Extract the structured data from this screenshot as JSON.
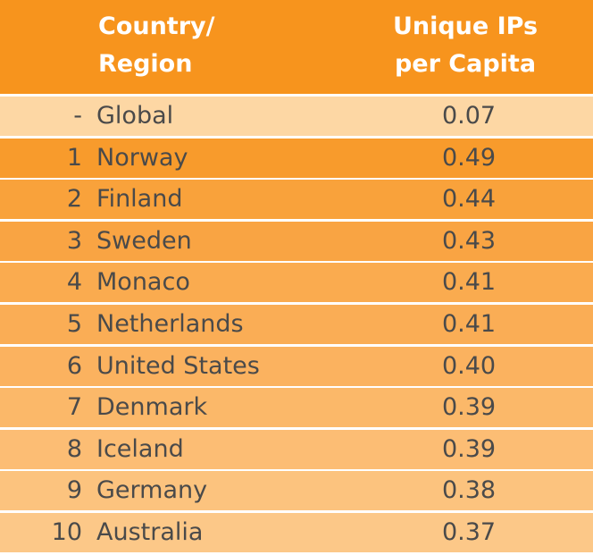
{
  "chart_data": {
    "type": "table",
    "columns": [
      "Country/ Region",
      "Unique IPs per Capita"
    ],
    "header": {
      "country_line1": "Country/",
      "country_line2": "Region",
      "value_line1": "Unique IPs",
      "value_line2": "per Capita"
    },
    "rows": [
      {
        "rank": "-",
        "name": "Global",
        "value": "0.07"
      },
      {
        "rank": "1",
        "name": "Norway",
        "value": "0.49"
      },
      {
        "rank": "2",
        "name": "Finland",
        "value": "0.44"
      },
      {
        "rank": "3",
        "name": "Sweden",
        "value": "0.43"
      },
      {
        "rank": "4",
        "name": "Monaco",
        "value": "0.41"
      },
      {
        "rank": "5",
        "name": "Netherlands",
        "value": "0.41"
      },
      {
        "rank": "6",
        "name": "United States",
        "value": "0.40"
      },
      {
        "rank": "7",
        "name": "Denmark",
        "value": "0.39"
      },
      {
        "rank": "8",
        "name": "Iceland",
        "value": "0.39"
      },
      {
        "rank": "9",
        "name": "Germany",
        "value": "0.38"
      },
      {
        "rank": "10",
        "name": "Australia",
        "value": "0.37"
      }
    ]
  },
  "colors": {
    "header": "#f7941d",
    "rows": [
      "#fdd7a4",
      "#f89b2c",
      "#f9a23b",
      "#f9a443",
      "#faab4f",
      "#faad55",
      "#fbb25f",
      "#fbb869",
      "#fcbd74",
      "#fcc37e",
      "#fcc888"
    ],
    "text": "#4a4a4a",
    "header_text": "#ffffff"
  }
}
